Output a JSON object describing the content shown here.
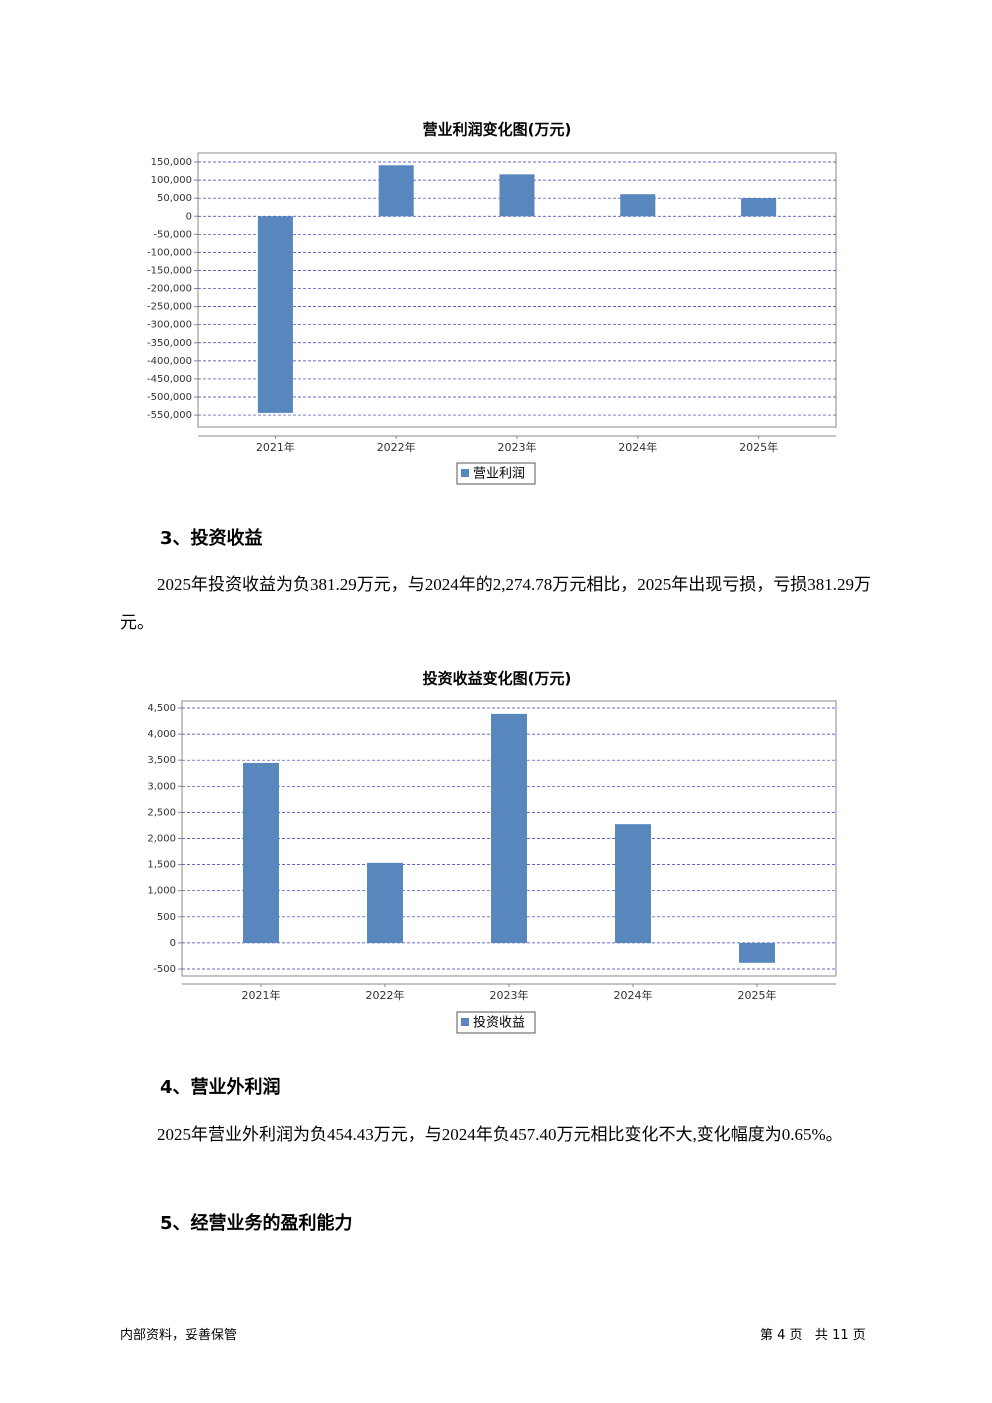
{
  "chart_data": [
    {
      "type": "bar",
      "title": "营业利润变化图(万元)",
      "categories": [
        "2021年",
        "2022年",
        "2023年",
        "2024年",
        "2025年"
      ],
      "series": [
        {
          "name": "营业利润",
          "color": "#5787bd",
          "values": [
            -544000,
            141000,
            116000,
            61000,
            50000
          ]
        }
      ],
      "ylim": [
        -583000,
        175000
      ],
      "yticks": [
        {
          "value": 150000,
          "label": "150,000"
        },
        {
          "value": 100000,
          "label": "100,000"
        },
        {
          "value": 50000,
          "label": "50,000"
        },
        0,
        {
          "value": -50000,
          "label": "-50,000"
        },
        {
          "value": -100000,
          "label": "-100,000"
        },
        {
          "value": -150000,
          "label": "-150,000"
        },
        {
          "value": -200000,
          "label": "-200,000"
        },
        {
          "value": -250000,
          "label": "-250,000"
        },
        {
          "value": -300000,
          "label": "-300,000"
        },
        {
          "value": -350000,
          "label": "-350,000"
        },
        {
          "value": -400000,
          "label": "-400,000"
        },
        {
          "value": -450000,
          "label": "-450,000"
        },
        {
          "value": -500000,
          "label": "-500,000"
        },
        {
          "value": -550000,
          "label": "-550,000"
        }
      ],
      "grid": true,
      "legend": "bottom"
    },
    {
      "type": "bar",
      "title": "投资收益变化图(万元)",
      "categories": [
        "2021年",
        "2022年",
        "2023年",
        "2024年",
        "2025年"
      ],
      "series": [
        {
          "name": "投资收益",
          "color": "#5787bd",
          "values": [
            3448,
            1533,
            4387,
            2274.78,
            -381.29
          ]
        }
      ],
      "ylim": [
        -634,
        4634
      ],
      "yticks": [
        {
          "value": 4500,
          "label": "4,500"
        },
        {
          "value": 4000,
          "label": "4,000"
        },
        {
          "value": 3500,
          "label": "3,500"
        },
        {
          "value": 3000,
          "label": "3,000"
        },
        {
          "value": 2500,
          "label": "2,500"
        },
        {
          "value": 2000,
          "label": "2,000"
        },
        {
          "value": 1500,
          "label": "1,500"
        },
        {
          "value": 1000,
          "label": "1,000"
        },
        500,
        0,
        -500
      ],
      "grid": true,
      "legend": "bottom"
    }
  ],
  "sections": [
    {
      "heading": "3、投资收益",
      "paragraph": "2025年投资收益为负381.29万元，与2024年的2,274.78万元相比，2025年出现亏损，亏损381.29万元。"
    },
    {
      "heading": "4、营业外利润",
      "paragraph": "2025年营业外利润为负454.43万元，与2024年负457.40万元相比变化不大,变化幅度为0.65%。"
    },
    {
      "heading": "5、经营业务的盈利能力"
    }
  ],
  "footer": {
    "left": "内部资料，妥善保管",
    "right": "第 4 页   共 11 页"
  }
}
